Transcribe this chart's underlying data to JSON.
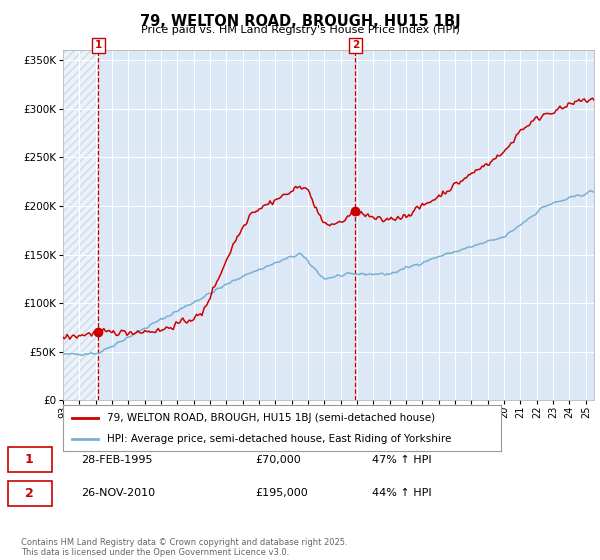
{
  "title": "79, WELTON ROAD, BROUGH, HU15 1BJ",
  "subtitle": "Price paid vs. HM Land Registry's House Price Index (HPI)",
  "legend_line1": "79, WELTON ROAD, BROUGH, HU15 1BJ (semi-detached house)",
  "legend_line2": "HPI: Average price, semi-detached house, East Riding of Yorkshire",
  "annotation1_date": "28-FEB-1995",
  "annotation1_price": "£70,000",
  "annotation1_hpi": "47% ↑ HPI",
  "annotation2_date": "26-NOV-2010",
  "annotation2_price": "£195,000",
  "annotation2_hpi": "44% ↑ HPI",
  "footer": "Contains HM Land Registry data © Crown copyright and database right 2025.\nThis data is licensed under the Open Government Licence v3.0.",
  "plot_bg_color": "#dce8f5",
  "red_line_color": "#cc0000",
  "blue_line_color": "#7aafd4",
  "vline_color": "#cc0000",
  "ylim": [
    0,
    360000
  ],
  "yticks": [
    0,
    50000,
    100000,
    150000,
    200000,
    250000,
    300000,
    350000
  ],
  "xlim_start": 1993.0,
  "xlim_end": 2025.5,
  "purchase1_x": 1995.17,
  "purchase1_y": 70000,
  "purchase2_x": 2010.9,
  "purchase2_y": 195000
}
